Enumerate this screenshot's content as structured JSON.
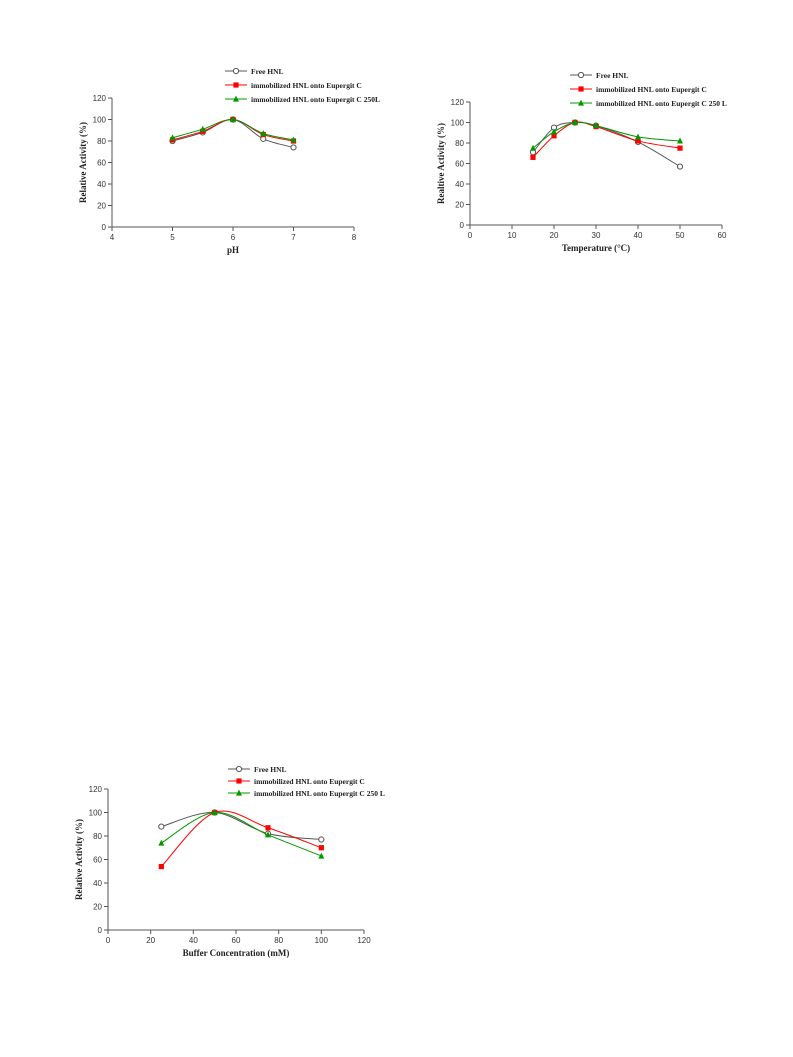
{
  "colors": {
    "free": "#555555",
    "eupergit_c": "#ff0000",
    "eupergit_c250": "#009900"
  },
  "chart_data": [
    {
      "type": "line",
      "xlabel": "pH",
      "ylabel": "Relative Activity (%)",
      "xlim": [
        4,
        8
      ],
      "ylim": [
        0,
        120
      ],
      "xticks": [
        4,
        5,
        6,
        7,
        8
      ],
      "yticks": [
        0,
        20,
        40,
        60,
        80,
        100,
        120
      ],
      "legend": "top-right",
      "series": [
        {
          "name": "Free HNL",
          "marker": "open-circle",
          "x": [
            5,
            5.5,
            6,
            6.5,
            7
          ],
          "y": [
            80,
            88,
            100,
            82,
            74
          ]
        },
        {
          "name": "immobilized HNL onto Eupergit C",
          "marker": "square",
          "x": [
            5,
            5.5,
            6,
            6.5,
            7
          ],
          "y": [
            81,
            89,
            100,
            86,
            80
          ]
        },
        {
          "name": "immobilized HNL onto Eupergit C 250L",
          "marker": "triangle",
          "x": [
            5,
            5.5,
            6,
            6.5,
            7
          ],
          "y": [
            83,
            91,
            100,
            87,
            81
          ]
        }
      ]
    },
    {
      "type": "line",
      "xlabel": "Temperature (°C)",
      "ylabel": "Realtive Activity (%)",
      "xlim": [
        0,
        60
      ],
      "ylim": [
        0,
        120
      ],
      "xticks": [
        0,
        10,
        20,
        30,
        40,
        50,
        60
      ],
      "yticks": [
        0,
        20,
        40,
        60,
        80,
        100,
        120
      ],
      "legend": "top-right",
      "series": [
        {
          "name": "Free HNL",
          "marker": "open-circle",
          "x": [
            15,
            20,
            25,
            30,
            40,
            50
          ],
          "y": [
            71,
            95,
            100,
            97,
            81,
            57
          ]
        },
        {
          "name": "immobilized HNL onto Eupergit C",
          "marker": "square",
          "x": [
            15,
            20,
            25,
            30,
            40,
            50
          ],
          "y": [
            66,
            87,
            100,
            96,
            82,
            75
          ]
        },
        {
          "name": "immobilized HNL onto Eupergit C 250 L",
          "marker": "triangle",
          "x": [
            15,
            20,
            25,
            30,
            40,
            50
          ],
          "y": [
            75,
            91,
            100,
            97,
            86,
            82
          ]
        }
      ]
    },
    {
      "type": "line",
      "xlabel": "Buffer Concentration (mM)",
      "ylabel": "Relative Activity (%)",
      "xlim": [
        0,
        120
      ],
      "ylim": [
        0,
        120
      ],
      "xticks": [
        0,
        20,
        40,
        60,
        80,
        100,
        120
      ],
      "yticks": [
        0,
        20,
        40,
        60,
        80,
        100,
        120
      ],
      "legend": "top-right",
      "series": [
        {
          "name": "Free HNL",
          "marker": "open-circle",
          "x": [
            25,
            50,
            75,
            100
          ],
          "y": [
            88,
            100,
            82,
            77
          ]
        },
        {
          "name": "immobilized HNL onto Eupergit C",
          "marker": "square",
          "x": [
            25,
            50,
            75,
            100
          ],
          "y": [
            54,
            100,
            87,
            70
          ]
        },
        {
          "name": "immobilized HNL onto Eupergit C 250 L",
          "marker": "triangle",
          "x": [
            25,
            50,
            75,
            100
          ],
          "y": [
            74,
            100,
            81,
            63
          ]
        }
      ]
    }
  ]
}
